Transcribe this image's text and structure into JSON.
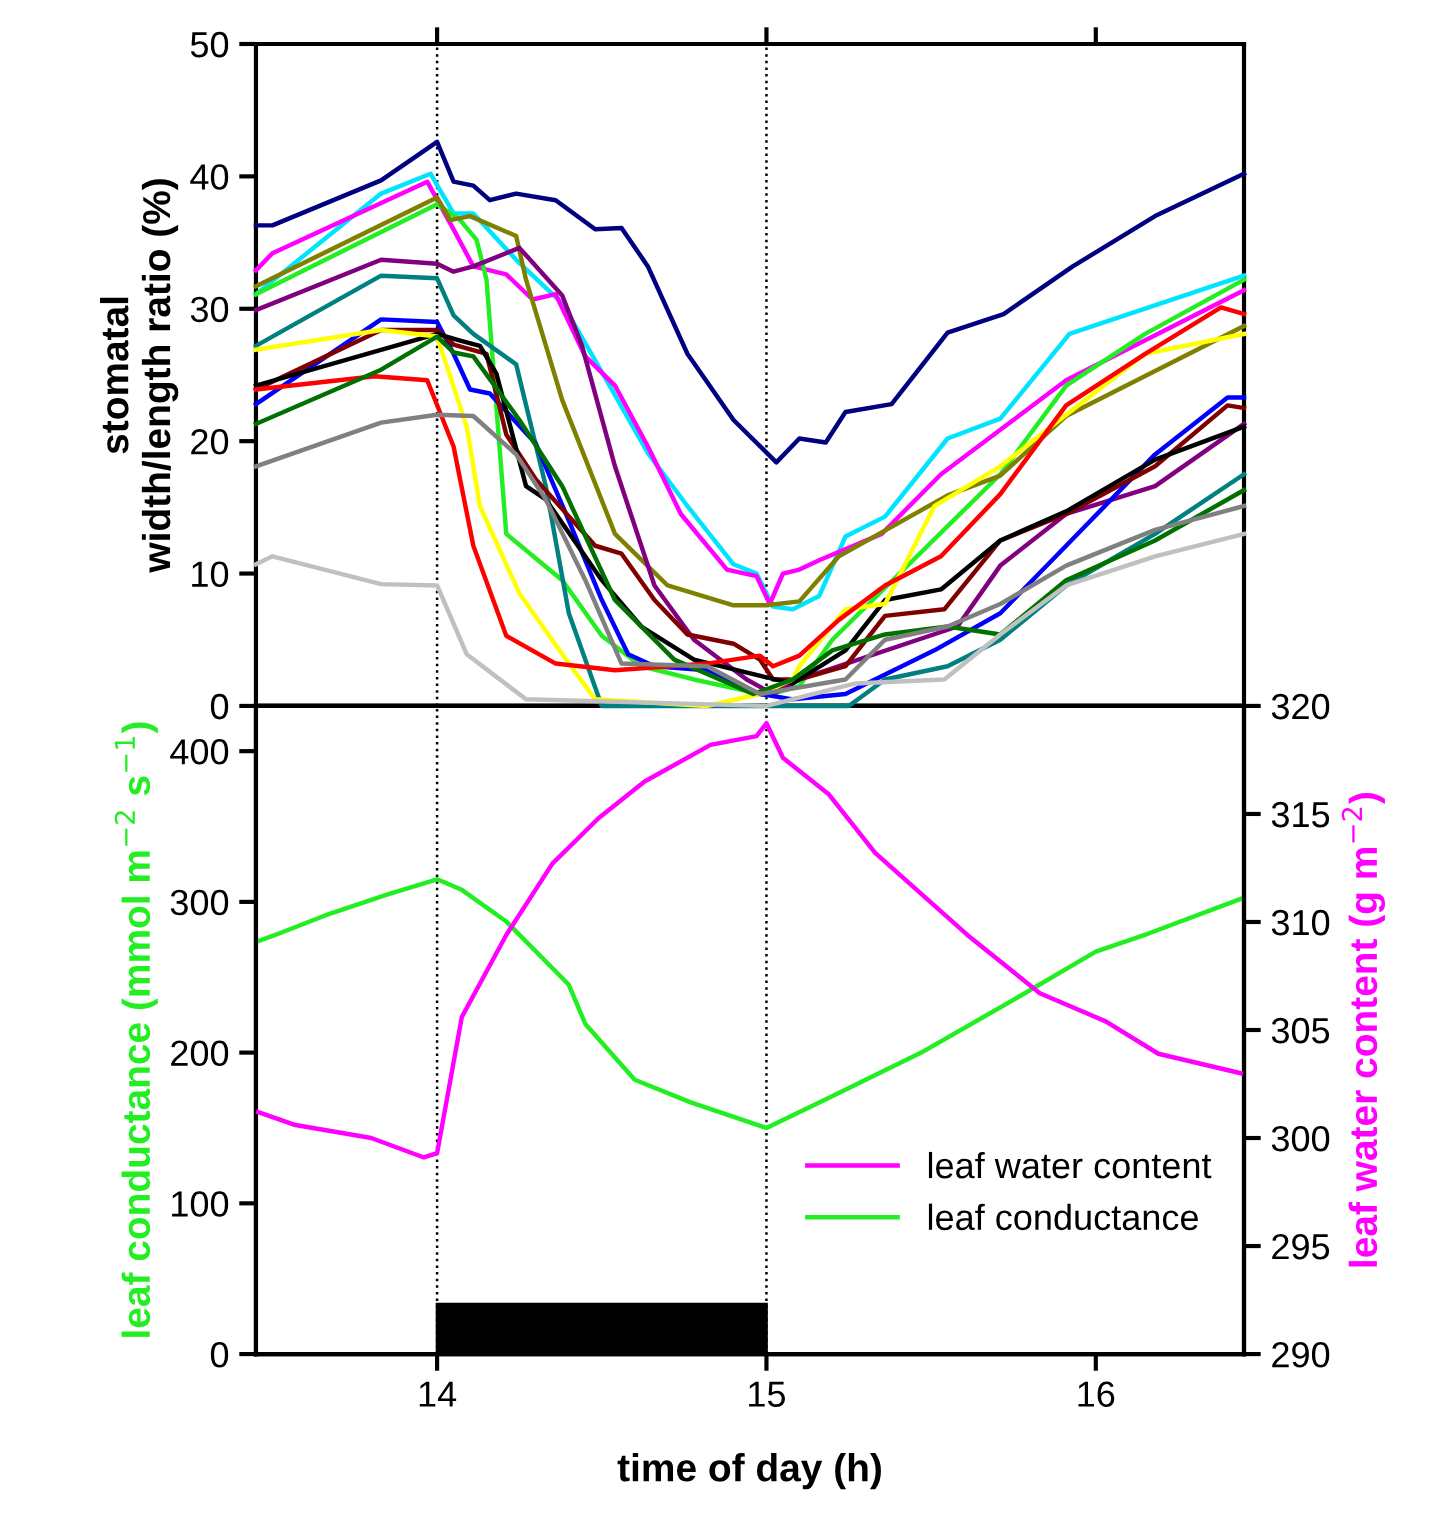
{
  "chart_data": [
    {
      "type": "line",
      "ylabel": "stomatal\nwidth/length ratio (%)",
      "xlim": [
        13.45,
        16.45
      ],
      "xticks": [
        14,
        15,
        16
      ],
      "ylim": [
        0,
        50
      ],
      "yticks": [
        0,
        10,
        20,
        30,
        40,
        50
      ],
      "tick_labels": "y",
      "grid": false,
      "legend": false,
      "ref_lines": [
        {
          "axis": "x",
          "value": 14,
          "color": "#000000",
          "line_style": "dotted"
        },
        {
          "axis": "x",
          "value": 15,
          "color": "#000000",
          "line_style": "dotted"
        }
      ],
      "series": [
        {
          "color": "#000080",
          "x": [
            13.45,
            13.5,
            13.83,
            14.0,
            14.05,
            14.11,
            14.16,
            14.24,
            14.36,
            14.48,
            14.56,
            14.64,
            14.76,
            14.9,
            15.03,
            15.1,
            15.18,
            15.24,
            15.38,
            15.55,
            15.72,
            15.93,
            16.18,
            16.45
          ],
          "values": [
            36.3,
            36.3,
            39.7,
            42.6,
            39.6,
            39.3,
            38.2,
            38.7,
            38.2,
            36,
            36.1,
            33.2,
            26.6,
            21.6,
            18.4,
            20.2,
            19.9,
            22.2,
            22.8,
            28.2,
            29.6,
            33.2,
            37,
            40.2
          ]
        },
        {
          "color": "#00e5ff",
          "x": [
            13.45,
            13.83,
            13.98,
            14.05,
            14.11,
            14.24,
            14.38,
            14.48,
            14.64,
            14.76,
            14.9,
            14.97,
            15.02,
            15.08,
            15.16,
            15.24,
            15.36,
            15.55,
            15.71,
            15.92,
            16.45
          ],
          "values": [
            31.1,
            38.7,
            40.2,
            37.2,
            37.2,
            33.7,
            30.4,
            26.1,
            19.1,
            15.1,
            10.7,
            10,
            7.5,
            7.3,
            8.3,
            12.8,
            14.3,
            20.2,
            21.7,
            28.1,
            32.5
          ]
        },
        {
          "color": "#ff00ff",
          "x": [
            13.45,
            13.5,
            13.97,
            14.05,
            14.11,
            14.21,
            14.29,
            14.36,
            14.45,
            14.54,
            14.64,
            14.74,
            14.88,
            14.97,
            15.01,
            15.05,
            15.1,
            15.16,
            15.35,
            15.53,
            15.91,
            16.45
          ],
          "values": [
            32.9,
            34.2,
            39.6,
            36,
            33.2,
            32.6,
            30.7,
            31.1,
            26.4,
            24.2,
            19.6,
            14.5,
            10.3,
            9.8,
            7.7,
            10,
            10.3,
            11,
            13,
            17.5,
            24.6,
            31.4
          ]
        },
        {
          "color": "#22ee22",
          "x": [
            13.45,
            14.0,
            14.07,
            14.12,
            14.15,
            14.21,
            14.38,
            14.5,
            14.62,
            14.78,
            15.0,
            15.1,
            15.2,
            15.71,
            15.91,
            16.15,
            16.45
          ],
          "values": [
            31.1,
            37.9,
            36.7,
            35.2,
            32.2,
            13,
            9.5,
            5.3,
            3,
            2,
            0.8,
            1.5,
            5,
            17.5,
            24.2,
            28.1,
            32.2
          ]
        },
        {
          "color": "#808000",
          "x": [
            13.45,
            14.0,
            14.04,
            14.1,
            14.24,
            14.27,
            14.38,
            14.54,
            14.7,
            14.9,
            15.0,
            15.1,
            15.22,
            15.55,
            15.71,
            15.91,
            16.45
          ],
          "values": [
            31.7,
            38.4,
            36.7,
            37,
            35.5,
            32.2,
            23.1,
            13,
            9.1,
            7.6,
            7.6,
            7.9,
            11.3,
            15.9,
            17.4,
            21.9,
            28.7
          ]
        },
        {
          "color": "#800080",
          "x": [
            13.45,
            13.83,
            14.0,
            14.05,
            14.11,
            14.25,
            14.38,
            14.44,
            14.54,
            14.66,
            14.78,
            14.94,
            15.02,
            15.1,
            15.58,
            15.71,
            15.91,
            16.18,
            16.45
          ],
          "values": [
            29.9,
            33.7,
            33.4,
            32.8,
            33.2,
            34.6,
            31,
            27.2,
            18.1,
            9.1,
            5,
            2,
            0.9,
            2,
            6,
            10.6,
            14.5,
            16.6,
            21.3
          ]
        },
        {
          "color": "#008080",
          "x": [
            13.45,
            13.83,
            14.0,
            14.05,
            14.11,
            14.24,
            14.33,
            14.4,
            14.5,
            15.0,
            15.25,
            15.36,
            15.55,
            15.71,
            15.91,
            16.18,
            16.45
          ],
          "values": [
            27.2,
            32.5,
            32.3,
            29.5,
            28.1,
            25.8,
            16.6,
            7,
            0,
            0,
            0,
            2,
            3,
            5,
            9.1,
            13,
            17.5
          ]
        },
        {
          "color": "#0000ff",
          "x": [
            13.45,
            13.83,
            14.0,
            14.05,
            14.1,
            14.16,
            14.3,
            14.4,
            14.5,
            14.58,
            14.66,
            14.82,
            14.98,
            15.08,
            15.24,
            15.51,
            15.71,
            15.91,
            16.18,
            16.4,
            16.45
          ],
          "values": [
            22.8,
            29.2,
            29,
            26.6,
            23.9,
            23.6,
            19.8,
            14,
            8,
            3.9,
            3,
            2.7,
            0.9,
            0.5,
            0.9,
            4.2,
            7,
            12.1,
            19,
            23.3,
            23.3
          ]
        },
        {
          "color": "#800000",
          "x": [
            13.45,
            13.83,
            14.0,
            14.05,
            14.15,
            14.21,
            14.3,
            14.48,
            14.56,
            14.66,
            14.76,
            14.9,
            14.98,
            15.02,
            15.1,
            15.24,
            15.36,
            15.54,
            15.71,
            15.91,
            16.18,
            16.4,
            16.45
          ],
          "values": [
            23.9,
            28.4,
            28.4,
            27.3,
            26.6,
            20.5,
            17.1,
            12.1,
            11.5,
            8,
            5.4,
            4.7,
            3.5,
            2,
            2,
            3,
            6.8,
            7.3,
            12.5,
            14.5,
            18.1,
            22.7,
            22.5
          ]
        },
        {
          "color": "#000000",
          "x": [
            13.45,
            14.0,
            14.07,
            14.13,
            14.18,
            14.27,
            14.33,
            14.5,
            14.62,
            14.78,
            14.96,
            15.08,
            15.24,
            15.36,
            15.53,
            15.71,
            15.91,
            16.18,
            16.45
          ],
          "values": [
            24.2,
            28.1,
            27.6,
            27.2,
            25.1,
            16.6,
            15.6,
            9.5,
            6,
            3.5,
            2.4,
            1.7,
            4.2,
            8,
            8.8,
            12.5,
            14.7,
            18.6,
            21.1
          ]
        },
        {
          "color": "#ffff00",
          "x": [
            13.45,
            13.83,
            14.0,
            14.09,
            14.13,
            14.25,
            14.38,
            14.48,
            14.82,
            14.98,
            15.08,
            15.1,
            15.24,
            15.36,
            15.51,
            15.71,
            15.91,
            16.15,
            16.45
          ],
          "values": [
            26.9,
            28.4,
            27.9,
            21.1,
            15.1,
            8.5,
            3.9,
            0.5,
            0,
            0.9,
            2,
            3,
            7.3,
            7.7,
            15.1,
            18.1,
            22,
            26.6,
            28.1
          ]
        },
        {
          "color": "#ff0000",
          "x": [
            13.45,
            13.81,
            13.97,
            14.05,
            14.11,
            14.21,
            14.36,
            14.54,
            14.82,
            14.98,
            15.02,
            15.1,
            15.22,
            15.36,
            15.53,
            15.71,
            15.91,
            16.15,
            16.38,
            16.45
          ],
          "values": [
            23.9,
            24.9,
            24.6,
            19.6,
            12.1,
            5.3,
            3.2,
            2.7,
            3.2,
            3.8,
            3,
            3.8,
            6.5,
            9.1,
            11.3,
            16,
            22.7,
            26.6,
            30.1,
            29.6
          ]
        },
        {
          "color": "#007000",
          "x": [
            13.45,
            13.83,
            14.0,
            14.05,
            14.11,
            14.25,
            14.38,
            14.54,
            14.72,
            14.96,
            15.08,
            15.2,
            15.36,
            15.55,
            15.71,
            15.91,
            16.18,
            16.45
          ],
          "values": [
            21.3,
            25.4,
            27.9,
            26.7,
            26.4,
            21.6,
            16.6,
            8,
            3.5,
            0.9,
            2,
            4.2,
            5.4,
            6,
            5.4,
            9.5,
            12.5,
            16.3
          ]
        },
        {
          "color": "#808080",
          "x": [
            13.45,
            13.83,
            14.0,
            14.11,
            14.24,
            14.33,
            14.45,
            14.56,
            14.82,
            14.98,
            15.24,
            15.36,
            15.55,
            15.71,
            15.91,
            16.18,
            16.45
          ],
          "values": [
            18.1,
            21.4,
            22,
            21.9,
            19,
            15.6,
            9.5,
            3.2,
            3,
            0.9,
            2,
            5,
            6,
            7.7,
            10.6,
            13.3,
            15.1
          ]
        },
        {
          "color": "#c0c0c0",
          "x": [
            13.45,
            13.5,
            13.83,
            14.0,
            14.09,
            14.27,
            15.0,
            15.27,
            15.54,
            15.71,
            15.91,
            16.18,
            16.45
          ],
          "values": [
            10.7,
            11.3,
            9.2,
            9.1,
            3.9,
            0.5,
            0,
            1.7,
            2,
            5.4,
            9.1,
            11.3,
            13
          ]
        }
      ]
    },
    {
      "type": "line",
      "xlabel": "time of day (h)",
      "ylabel": "leaf conductance (mmol m$^{−2}$ s$^{−1}$)",
      "y2label": "leaf water content (g m$^{−2}$)",
      "xlim": [
        13.45,
        16.45
      ],
      "xticks": [
        14,
        15,
        16
      ],
      "ylim": [
        0,
        430
      ],
      "yticks": [
        0,
        100,
        200,
        300,
        400
      ],
      "y2lim": [
        290,
        320
      ],
      "y2ticks": [
        290,
        295,
        300,
        305,
        310,
        315,
        320
      ],
      "grid": false,
      "legend": "bottom right",
      "ref_lines": [
        {
          "axis": "x",
          "value": 14,
          "color": "#000000",
          "line_style": "dotted"
        },
        {
          "axis": "x",
          "value": 15,
          "color": "#000000",
          "line_style": "dotted"
        }
      ],
      "bands": [
        {
          "axis": "x",
          "from": 14,
          "to": 15,
          "color": "#000000"
        }
      ],
      "series": [
        {
          "name": "leaf water content",
          "color": "#ff00ff",
          "axis": "y2",
          "x": [
            13.457,
            13.57,
            13.8,
            13.96,
            14.0,
            14.075,
            14.21,
            14.35,
            14.49,
            14.63,
            14.83,
            14.97,
            15.0,
            15.05,
            15.19,
            15.33,
            15.61,
            15.83,
            16.03,
            16.19,
            16.44
          ],
          "values": [
            301.2,
            300.6,
            300.0,
            299.1,
            299.3,
            305.6,
            309.4,
            312.7,
            314.8,
            316.5,
            318.2,
            318.6,
            319.2,
            317.6,
            315.9,
            313.2,
            309.4,
            306.7,
            305.4,
            303.9,
            303.0
          ]
        },
        {
          "name": "leaf conductance",
          "color": "#22ee22",
          "x": [
            13.457,
            13.52,
            13.66,
            13.85,
            14.0,
            14.075,
            14.21,
            14.4,
            14.45,
            14.6,
            14.77,
            15.0,
            15.19,
            15.47,
            15.75,
            16.0,
            16.16,
            16.44
          ],
          "values": [
            274,
            279,
            291,
            305,
            315,
            308,
            287,
            245,
            219,
            182,
            167,
            150,
            170,
            200,
            235,
            267,
            279,
            302
          ]
        }
      ]
    }
  ]
}
